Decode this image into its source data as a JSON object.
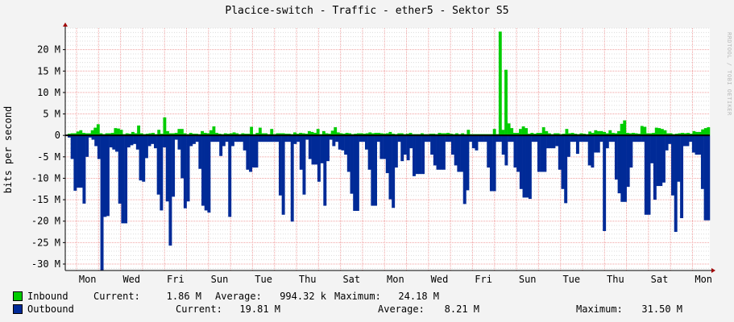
{
  "window": {
    "title": "Placice-switch - Traffic - ether5 - Sektor S5",
    "watermark": "RRDTOOL / TOBI OETIKER"
  },
  "legend": {
    "inbound": {
      "label": "Inbound",
      "color": "#00cc00",
      "current_label": "Current:",
      "current": "1.86 M",
      "average_label": "Average:",
      "average": "994.32 k",
      "maximum_label": "Maximum:",
      "maximum": "24.18 M"
    },
    "outbound": {
      "label": "Outbound",
      "color": "#002a97",
      "current_label": "Current:",
      "current": "19.81 M",
      "average_label": "Average:",
      "average": "8.21 M",
      "maximum_label": "Maximum:",
      "maximum": "31.50 M"
    }
  },
  "chart_data": {
    "type": "area",
    "ylabel": "bits per second",
    "y_unit": "M",
    "ylim": [
      -31.5,
      25
    ],
    "y_ticks": [
      {
        "value": 20,
        "label": "20 M"
      },
      {
        "value": 15,
        "label": "15 M"
      },
      {
        "value": 10,
        "label": "10 M"
      },
      {
        "value": 5,
        "label": "5 M"
      },
      {
        "value": 0,
        "label": "0"
      },
      {
        "value": -5,
        "label": "-5 M"
      },
      {
        "value": -10,
        "label": "-10 M"
      },
      {
        "value": -15,
        "label": "-15 M"
      },
      {
        "value": -20,
        "label": "-20 M"
      },
      {
        "value": -25,
        "label": "-25 M"
      },
      {
        "value": -30,
        "label": "-30 M"
      }
    ],
    "x_ticks": [
      "Mon",
      "Wed",
      "Fri",
      "Sun",
      "Tue",
      "Thu",
      "Sat",
      "Mon",
      "Wed",
      "Fri",
      "Sun",
      "Tue",
      "Thu",
      "Sat",
      "Mon"
    ],
    "grid": true,
    "series": [
      {
        "name": "Inbound",
        "color": "#00cc00",
        "values": [
          0.4,
          0.5,
          0.5,
          0.9,
          1.2,
          0.6,
          0.5,
          0.5,
          1.2,
          1.8,
          2.6,
          0.5,
          0.3,
          0.5,
          0.5,
          0.6,
          1.7,
          1.6,
          1.3,
          0.3,
          0.5,
          0.4,
          0.8,
          0.5,
          2.3,
          0.5,
          0.3,
          0.4,
          0.5,
          0.6,
          0.3,
          1.3,
          0.4,
          4.2,
          1.0,
          0.5,
          0.5,
          0.6,
          1.5,
          1.5,
          0.5,
          0.3,
          0.6,
          0.4,
          0.4,
          0.3,
          1.0,
          0.6,
          0.5,
          1.2,
          2.1,
          0.6,
          0.4,
          0.3,
          0.5,
          0.4,
          0.5,
          0.7,
          0.5,
          0.3,
          0.5,
          0.4,
          0.4,
          2.0,
          0.3,
          0.6,
          1.8,
          0.5,
          0.5,
          0.3,
          1.5,
          0.3,
          0.5,
          0.5,
          0.5,
          0.4,
          0.4,
          0.3,
          0.7,
          0.4,
          0.6,
          0.5,
          0.4,
          1.0,
          0.8,
          0.6,
          1.5,
          0.3,
          1.0,
          0.5,
          0.4,
          1.1,
          1.9,
          0.7,
          0.5,
          0.4,
          0.6,
          0.5,
          0.3,
          0.4,
          0.5,
          0.5,
          0.4,
          0.5,
          0.7,
          0.5,
          0.6,
          0.6,
          0.5,
          0.4,
          0.5,
          0.8,
          0.4,
          0.3,
          0.5,
          0.5,
          0.3,
          0.4,
          0.6,
          0.3,
          0.3,
          0.3,
          0.5,
          0.3,
          0.3,
          0.4,
          0.4,
          0.3,
          0.6,
          0.5,
          0.5,
          0.6,
          0.4,
          0.3,
          0.5,
          0.3,
          0.5,
          0.3,
          1.3,
          0.3,
          0.3,
          0.3,
          0.3,
          0.3,
          0.3,
          0.3,
          0.3,
          1.5,
          0.3,
          24.2,
          1.3,
          15.3,
          2.8,
          1.7,
          0.6,
          0.6,
          1.5,
          2.1,
          1.7,
          0.4,
          0.6,
          0.4,
          0.6,
          0.6,
          1.9,
          1.0,
          0.5,
          0.3,
          0.5,
          0.5,
          0.3,
          0.4,
          1.5,
          0.5,
          0.6,
          0.4,
          0.3,
          0.5,
          0.4,
          0.3,
          0.9,
          0.6,
          1.2,
          1.0,
          1.0,
          0.8,
          0.5,
          1.2,
          0.6,
          0.5,
          1.0,
          2.7,
          3.5,
          0.6,
          0.5,
          0.6,
          0.5,
          0.4,
          2.2,
          2.0,
          0.5,
          0.5,
          0.6,
          1.8,
          1.7,
          1.5,
          1.2,
          0.5,
          0.5,
          0.3,
          0.4,
          0.5,
          0.6,
          0.5,
          0.6,
          0.4,
          1.0,
          0.8,
          0.8,
          1.4,
          1.7,
          1.9
        ]
      },
      {
        "name": "Outbound",
        "color": "#002a97",
        "values": [
          -0.5,
          -5.5,
          -12.9,
          -12.2,
          -12.2,
          -15.9,
          -5.0,
          -0.5,
          -1.0,
          -2.5,
          -5.5,
          -31.5,
          -19.0,
          -18.8,
          -2.8,
          -3.3,
          -3.8,
          -15.9,
          -20.5,
          -20.5,
          -2.8,
          -2.3,
          -2.0,
          -3.3,
          -10.5,
          -10.8,
          -5.3,
          -2.5,
          -2.0,
          -3.0,
          -13.8,
          -17.5,
          -2.8,
          -15.4,
          -25.7,
          -14.3,
          -1.0,
          -3.3,
          -10.0,
          -17.0,
          -15.4,
          -2.5,
          -2.0,
          -1.5,
          -7.8,
          -16.4,
          -17.5,
          -18.0,
          -1.5,
          -1.5,
          -1.5,
          -4.8,
          -2.5,
          -1.5,
          -19.0,
          -2.5,
          -1.5,
          -1.5,
          -1.5,
          -3.5,
          -8.0,
          -8.5,
          -7.5,
          -7.5,
          -1.5,
          -1.5,
          -1.5,
          -1.5,
          -1.5,
          -1.5,
          -1.5,
          -14.0,
          -18.5,
          -1.5,
          -1.5,
          -20.1,
          -2.0,
          -1.5,
          -8.0,
          -13.8,
          -1.0,
          -5.5,
          -6.8,
          -6.8,
          -10.8,
          -6.5,
          -16.4,
          -6.0,
          -1.0,
          -2.5,
          -1.5,
          -3.3,
          -3.5,
          -4.5,
          -8.5,
          -13.6,
          -17.6,
          -17.6,
          -1.5,
          -1.5,
          -3.3,
          -8.0,
          -16.4,
          -16.4,
          -1.5,
          -5.5,
          -5.5,
          -8.8,
          -14.9,
          -16.9,
          -7.5,
          -1.5,
          -6.0,
          -4.5,
          -5.8,
          -3.0,
          -9.5,
          -9.0,
          -9.0,
          -9.0,
          -1.5,
          -1.5,
          -4.5,
          -7.0,
          -8.0,
          -8.0,
          -8.0,
          -1.5,
          -1.5,
          -4.5,
          -7.0,
          -8.5,
          -8.5,
          -16.0,
          -12.8,
          -1.5,
          -3.0,
          -3.5,
          -1.5,
          -1.5,
          -1.5,
          -7.5,
          -13.0,
          -13.0,
          -1.5,
          -1.5,
          -4.5,
          -7.0,
          -1.5,
          -1.5,
          -7.5,
          -8.5,
          -12.5,
          -14.5,
          -14.5,
          -14.8,
          -1.5,
          -1.5,
          -8.5,
          -8.5,
          -8.5,
          -3.0,
          -3.0,
          -3.0,
          -2.5,
          -8.0,
          -12.5,
          -15.8,
          -5.0,
          -1.5,
          -1.5,
          -4.3,
          -1.5,
          -1.5,
          -1.5,
          -7.0,
          -7.5,
          -4.0,
          -4.0,
          -1.5,
          -22.3,
          -3.0,
          -1.5,
          -1.5,
          -10.3,
          -13.5,
          -15.5,
          -15.5,
          -12.0,
          -7.5,
          -1.5,
          -1.5,
          -1.5,
          -1.5,
          -18.5,
          -18.5,
          -6.5,
          -15.0,
          -11.8,
          -11.8,
          -11.0,
          -3.5,
          -2.0,
          -14.0,
          -22.5,
          -10.8,
          -19.3,
          -2.5,
          -2.5,
          -1.5,
          -4.0,
          -4.5,
          -4.5,
          -12.5,
          -19.8,
          -19.8
        ]
      }
    ]
  }
}
